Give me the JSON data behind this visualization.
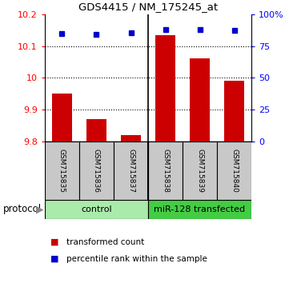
{
  "title": "GDS4415 / NM_175245_at",
  "samples": [
    "GSM715835",
    "GSM715836",
    "GSM715837",
    "GSM715838",
    "GSM715839",
    "GSM715840"
  ],
  "red_values": [
    9.95,
    9.87,
    9.82,
    10.135,
    10.06,
    9.99
  ],
  "blue_values": [
    85,
    84,
    85.5,
    88,
    88,
    87
  ],
  "ylim_left": [
    9.8,
    10.2
  ],
  "ylim_right": [
    0,
    100
  ],
  "yticks_left": [
    9.8,
    9.9,
    10.0,
    10.1,
    10.2
  ],
  "ytick_labels_left": [
    "9.8",
    "9.9",
    "10",
    "10.1",
    "10.2"
  ],
  "yticks_right": [
    0,
    25,
    50,
    75,
    100
  ],
  "ytick_labels_right": [
    "0",
    "25",
    "50",
    "75",
    "100%"
  ],
  "control_samples": 3,
  "control_label": "control",
  "treatment_label": "miR-128 transfected",
  "protocol_label": "protocol",
  "legend_red": "transformed count",
  "legend_blue": "percentile rank within the sample",
  "bar_color": "#cc0000",
  "blue_color": "#0000cc",
  "control_bg": "#aaeaaa",
  "treatment_bg": "#44cc44",
  "bar_bottom": 9.8
}
